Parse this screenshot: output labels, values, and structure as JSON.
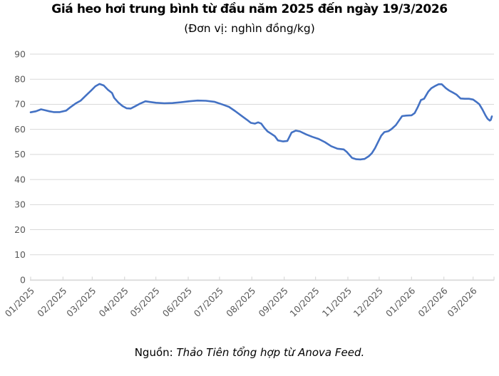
{
  "chart": {
    "title": "Giá heo hơi trung bình từ đầu năm 2025 đến ngày 19/3/2026",
    "subtitle": "(Đơn vị: nghìn đồng/kg)"
  },
  "footer": {
    "source_label": "Nguồn:",
    "source_text": "Thảo Tiên tổng hợp từ Anova Feed."
  },
  "chart_data": {
    "type": "line",
    "title": "Giá heo hơi trung bình từ đầu năm 2025 đến ngày 19/3/2026",
    "subtitle": "(Đơn vị: nghìn đồng/kg)",
    "series_name": "Giá heo hơi trung bình",
    "unit": "nghìn đồng/kg",
    "ylim": [
      0,
      90
    ],
    "y_ticks": [
      0,
      10,
      20,
      30,
      40,
      50,
      60,
      70,
      80,
      90
    ],
    "x_tick_labels": [
      "01/2025",
      "02/2025",
      "03/2025",
      "04/2025",
      "05/2025",
      "06/2025",
      "07/2025",
      "08/2025",
      "09/2025",
      "10/2025",
      "11/2025",
      "12/2025",
      "01/2026",
      "02/2026",
      "03/2026"
    ],
    "grid": true,
    "legend_position": "none",
    "line_color": "#4472C4",
    "grid_color": "#d9d9d9",
    "axis_label_color": "#595959",
    "dates": [
      "2025-01-01",
      "2025-01-06",
      "2025-01-11",
      "2025-01-15",
      "2025-01-19",
      "2025-01-23",
      "2025-01-29",
      "2025-02-04",
      "2025-02-08",
      "2025-02-13",
      "2025-02-18",
      "2025-02-23",
      "2025-02-28",
      "2025-03-04",
      "2025-03-08",
      "2025-03-12",
      "2025-03-16",
      "2025-03-20",
      "2025-03-22",
      "2025-03-26",
      "2025-03-30",
      "2025-04-03",
      "2025-04-07",
      "2025-04-11",
      "2025-04-16",
      "2025-04-21",
      "2025-04-26",
      "2025-05-01",
      "2025-05-09",
      "2025-05-17",
      "2025-05-25",
      "2025-06-02",
      "2025-06-10",
      "2025-06-18",
      "2025-06-26",
      "2025-07-04",
      "2025-07-10",
      "2025-07-16",
      "2025-07-22",
      "2025-07-27",
      "2025-07-31",
      "2025-08-04",
      "2025-08-07",
      "2025-08-10",
      "2025-08-13",
      "2025-08-16",
      "2025-08-19",
      "2025-08-23",
      "2025-08-26",
      "2025-08-31",
      "2025-09-04",
      "2025-09-08",
      "2025-09-12",
      "2025-09-16",
      "2025-09-22",
      "2025-09-28",
      "2025-10-04",
      "2025-10-10",
      "2025-10-16",
      "2025-10-22",
      "2025-10-28",
      "2025-10-31",
      "2025-11-05",
      "2025-11-09",
      "2025-11-13",
      "2025-11-17",
      "2025-11-21",
      "2025-11-24",
      "2025-11-27",
      "2025-11-30",
      "2025-12-03",
      "2025-12-06",
      "2025-12-10",
      "2025-12-13",
      "2025-12-17",
      "2025-12-20",
      "2025-12-23",
      "2025-12-27",
      "2026-01-01",
      "2026-01-04",
      "2026-01-07",
      "2026-01-10",
      "2026-01-13",
      "2026-01-17",
      "2026-01-20",
      "2026-01-24",
      "2026-01-27",
      "2026-01-30",
      "2026-02-03",
      "2026-02-06",
      "2026-02-10",
      "2026-02-13",
      "2026-02-17",
      "2026-02-21",
      "2026-02-25",
      "2026-03-01",
      "2026-03-04",
      "2026-03-07",
      "2026-03-10",
      "2026-03-13",
      "2026-03-15",
      "2026-03-17",
      "2026-03-18",
      "2026-03-19"
    ],
    "values": [
      66.8,
      67.2,
      68.0,
      67.6,
      67.2,
      66.9,
      66.9,
      67.5,
      68.8,
      70.3,
      71.5,
      73.5,
      75.5,
      77.2,
      78.1,
      77.5,
      75.8,
      74.5,
      72.6,
      70.7,
      69.3,
      68.4,
      68.3,
      69.2,
      70.3,
      71.2,
      70.9,
      70.6,
      70.4,
      70.5,
      70.8,
      71.2,
      71.5,
      71.4,
      71.0,
      69.9,
      69.0,
      67.3,
      65.4,
      63.9,
      62.6,
      62.3,
      62.8,
      62.3,
      60.6,
      59.2,
      58.4,
      57.3,
      55.6,
      55.2,
      55.4,
      58.7,
      59.5,
      59.2,
      58.0,
      57.0,
      56.2,
      54.9,
      53.3,
      52.3,
      52.0,
      51.0,
      48.6,
      48.1,
      48.0,
      48.2,
      49.3,
      50.5,
      52.5,
      55.0,
      57.5,
      58.9,
      59.3,
      60.2,
      61.7,
      63.5,
      65.3,
      65.5,
      65.6,
      66.5,
      68.9,
      71.7,
      72.2,
      75.0,
      76.4,
      77.4,
      78.0,
      78.0,
      76.4,
      75.5,
      74.6,
      73.9,
      72.3,
      72.2,
      72.2,
      71.9,
      71.0,
      70.0,
      67.9,
      65.5,
      64.2,
      63.5,
      63.8,
      65.2
    ]
  }
}
